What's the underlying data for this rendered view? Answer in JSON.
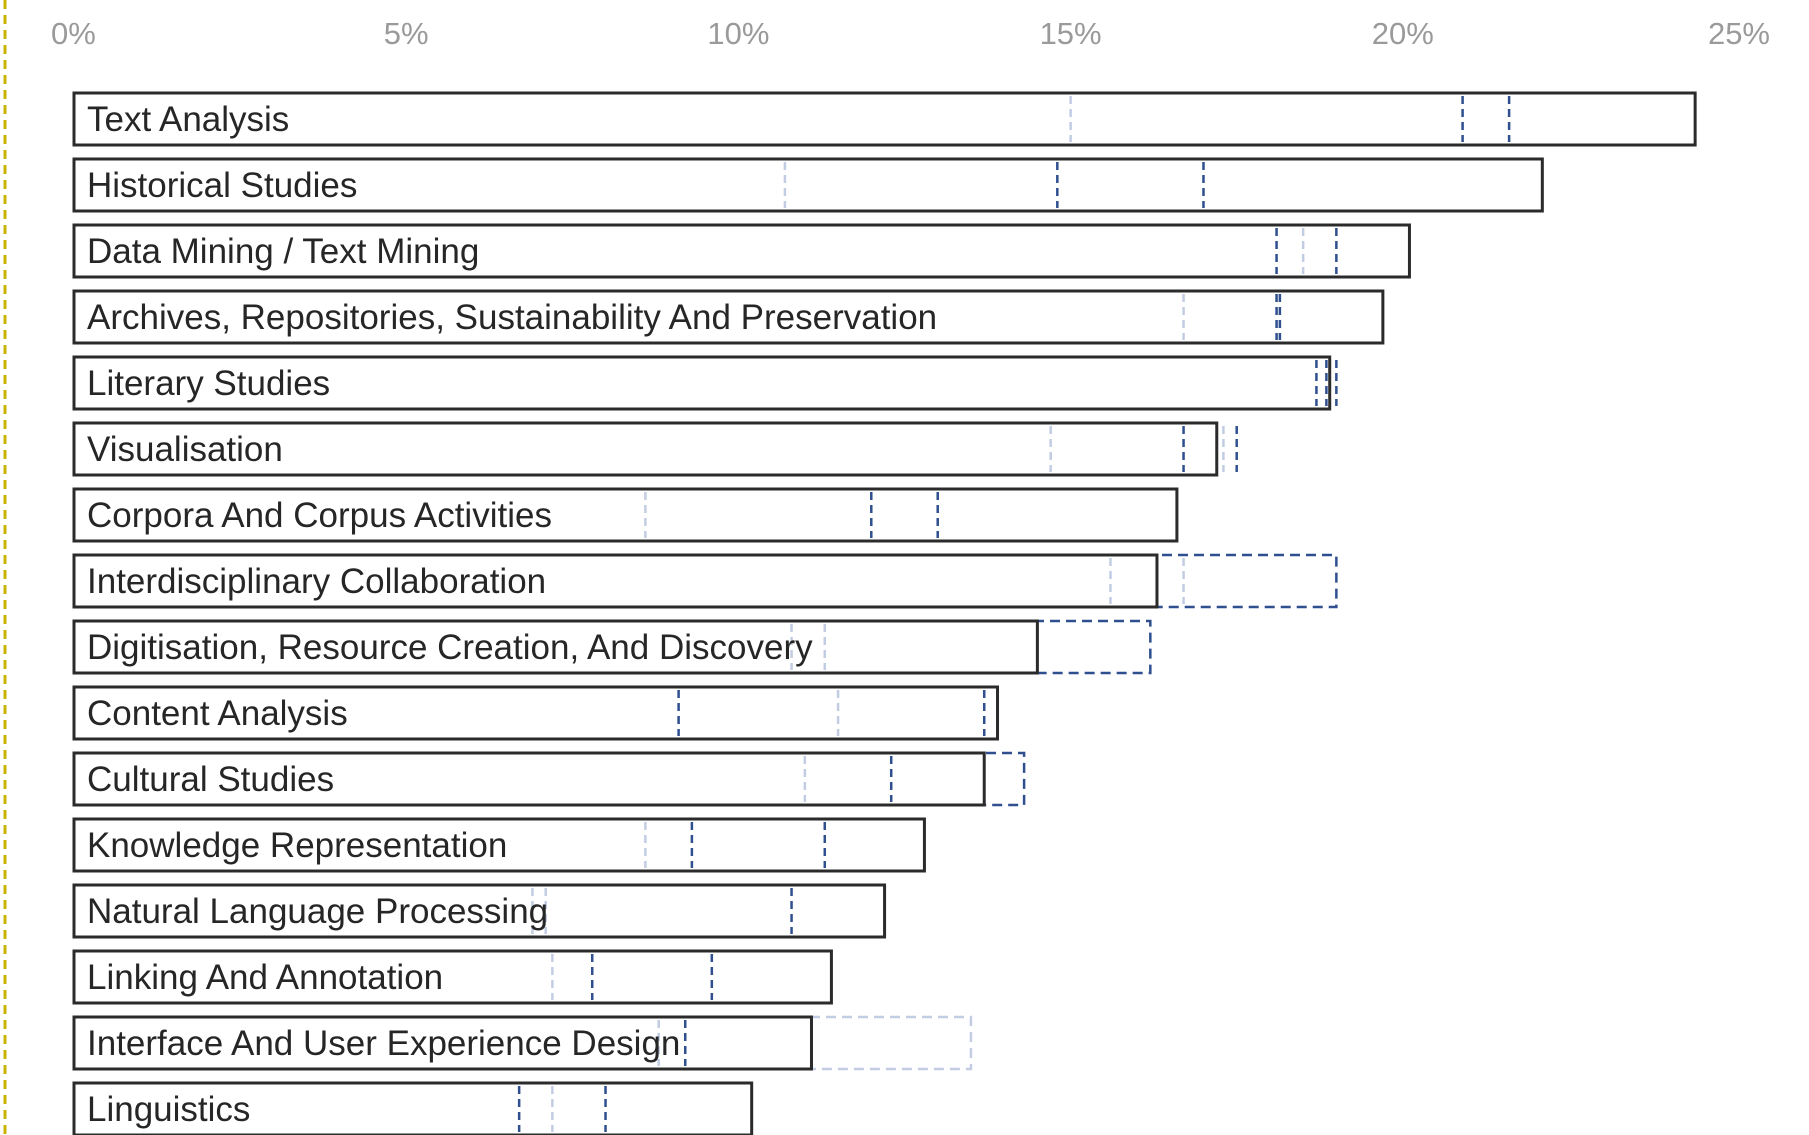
{
  "colors": {
    "bar_outline": "#2b2b2b",
    "marker_primary": "#2f4f8f",
    "marker_light": "#c2cde3",
    "tick_text": "#9a9a9a",
    "label_text": "#262626",
    "left_border": "#c8b400"
  },
  "chart_data": {
    "type": "bar",
    "orientation": "horizontal",
    "title": "",
    "xlabel": "",
    "ylabel": "",
    "xlim": [
      0,
      25
    ],
    "xticks": [
      0,
      5,
      10,
      15,
      20,
      25
    ],
    "xtick_labels": [
      "0%",
      "5%",
      "10%",
      "15%",
      "20%",
      "25%"
    ],
    "grid": false,
    "legend": "none",
    "categories": [
      "Text Analysis",
      "Historical Studies",
      "Data Mining / Text Mining",
      "Archives, Repositories, Sustainability And Preservation",
      "Literary Studies",
      "Visualisation",
      "Corpora And Corpus Activities",
      "Interdisciplinary Collaboration",
      "Digitisation, Resource Creation, And Discovery",
      "Content Analysis",
      "Cultural Studies",
      "Knowledge Representation",
      "Natural Language Processing",
      "Linking And Annotation",
      "Interface And User Experience Design",
      "Linguistics"
    ],
    "values": [
      24.4,
      22.1,
      20.1,
      19.7,
      18.9,
      17.2,
      16.6,
      16.3,
      14.5,
      13.9,
      13.7,
      12.8,
      12.2,
      11.4,
      11.1,
      10.2
    ],
    "dashed_extents": [
      {
        "index": 7,
        "value": 19.0
      },
      {
        "index": 8,
        "value": 16.2
      },
      {
        "index": 10,
        "value": 14.3
      }
    ],
    "light_dashed_extents": [
      {
        "index": 14,
        "value": 13.5
      }
    ],
    "markers": [
      {
        "index": 0,
        "dark": [
          20.9,
          21.6
        ],
        "light": [
          15.0
        ]
      },
      {
        "index": 1,
        "dark": [
          14.8,
          17.0
        ],
        "light": [
          10.7
        ]
      },
      {
        "index": 2,
        "dark": [
          18.1,
          19.0
        ],
        "light": [
          18.5
        ]
      },
      {
        "index": 3,
        "dark": [
          18.1,
          18.15
        ],
        "light": [
          16.7
        ]
      },
      {
        "index": 4,
        "dark": [
          18.7,
          18.85,
          19.0
        ],
        "light": []
      },
      {
        "index": 5,
        "dark": [
          16.7,
          17.5
        ],
        "light": [
          14.7,
          17.3
        ]
      },
      {
        "index": 6,
        "dark": [
          12.0,
          13.0
        ],
        "light": [
          8.6
        ]
      },
      {
        "index": 7,
        "dark": [],
        "light": [
          15.6,
          16.7
        ]
      },
      {
        "index": 8,
        "dark": [],
        "light": [
          10.8,
          11.3
        ]
      },
      {
        "index": 9,
        "dark": [
          9.1,
          13.7
        ],
        "light": [
          11.5
        ]
      },
      {
        "index": 10,
        "dark": [
          12.3
        ],
        "light": [
          11.0
        ]
      },
      {
        "index": 11,
        "dark": [
          9.3,
          11.3
        ],
        "light": [
          8.6
        ]
      },
      {
        "index": 12,
        "dark": [
          10.8
        ],
        "light": [
          6.9,
          7.1
        ]
      },
      {
        "index": 13,
        "dark": [
          7.8,
          9.6
        ],
        "light": [
          7.2
        ]
      },
      {
        "index": 14,
        "dark": [
          9.2
        ],
        "light": [
          8.8
        ]
      },
      {
        "index": 15,
        "dark": [
          6.7,
          8.0
        ],
        "light": [
          7.2
        ]
      }
    ]
  }
}
